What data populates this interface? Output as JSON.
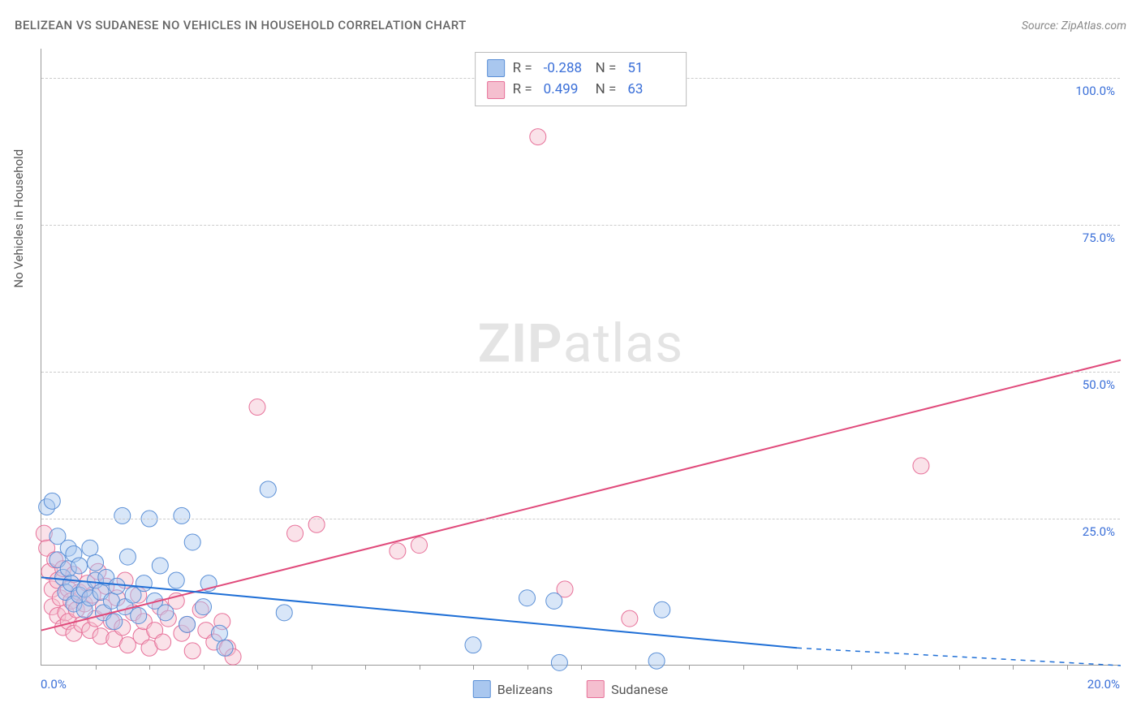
{
  "title": "BELIZEAN VS SUDANESE NO VEHICLES IN HOUSEHOLD CORRELATION CHART",
  "source": "Source: ZipAtlas.com",
  "watermark_bold": "ZIP",
  "watermark_light": "atlas",
  "chart": {
    "type": "scatter",
    "background_color": "#ffffff",
    "grid_color": "#cccccc",
    "axis_color": "#999999",
    "x_min": 0.0,
    "x_max": 20.0,
    "y_min": 0.0,
    "y_max": 105.0,
    "x_label_start": "0.0%",
    "x_label_end": "20.0%",
    "y_title": "No Vehicles in Household",
    "y_ticks": [
      {
        "value": 25.0,
        "label": "25.0%"
      },
      {
        "value": 50.0,
        "label": "50.0%"
      },
      {
        "value": 75.0,
        "label": "75.0%"
      },
      {
        "value": 100.0,
        "label": "100.0%"
      }
    ],
    "x_tick_step": 1.0,
    "y_label_color": "#3a6fd8",
    "marker_radius": 10,
    "marker_opacity": 0.45,
    "line_width": 2,
    "series": [
      {
        "id": "belizeans",
        "name": "Belizeans",
        "fill": "#a9c7ef",
        "stroke": "#5a8fd6",
        "line_color": "#1f6fd6",
        "R": "-0.288",
        "N": "51",
        "trend": {
          "x1": 0.0,
          "y1": 15.0,
          "x2": 14.0,
          "y2": 3.0,
          "dash_from_x": 14.0,
          "dash_to_x": 20.0,
          "dash_to_y": 0.0
        },
        "points": [
          [
            0.1,
            27.0
          ],
          [
            0.2,
            28.0
          ],
          [
            0.3,
            18.0
          ],
          [
            0.3,
            22.0
          ],
          [
            0.4,
            15.0
          ],
          [
            0.45,
            12.5
          ],
          [
            0.5,
            20.0
          ],
          [
            0.5,
            16.5
          ],
          [
            0.55,
            14.0
          ],
          [
            0.6,
            10.5
          ],
          [
            0.6,
            19.0
          ],
          [
            0.7,
            17.0
          ],
          [
            0.7,
            12.0
          ],
          [
            0.8,
            13.0
          ],
          [
            0.8,
            9.5
          ],
          [
            0.9,
            20.0
          ],
          [
            0.9,
            11.5
          ],
          [
            1.0,
            14.5
          ],
          [
            1.0,
            17.5
          ],
          [
            1.1,
            12.5
          ],
          [
            1.15,
            9.0
          ],
          [
            1.2,
            15.0
          ],
          [
            1.3,
            11.0
          ],
          [
            1.35,
            7.5
          ],
          [
            1.4,
            13.5
          ],
          [
            1.5,
            25.5
          ],
          [
            1.55,
            10.0
          ],
          [
            1.6,
            18.5
          ],
          [
            1.7,
            12.0
          ],
          [
            1.8,
            8.5
          ],
          [
            1.9,
            14.0
          ],
          [
            2.0,
            25.0
          ],
          [
            2.1,
            11.0
          ],
          [
            2.2,
            17.0
          ],
          [
            2.3,
            9.0
          ],
          [
            2.5,
            14.5
          ],
          [
            2.6,
            25.5
          ],
          [
            2.7,
            7.0
          ],
          [
            2.8,
            21.0
          ],
          [
            3.0,
            10.0
          ],
          [
            3.1,
            14.0
          ],
          [
            3.3,
            5.5
          ],
          [
            3.4,
            3.0
          ],
          [
            4.2,
            30.0
          ],
          [
            4.5,
            9.0
          ],
          [
            8.0,
            3.5
          ],
          [
            9.0,
            11.5
          ],
          [
            9.5,
            11.0
          ],
          [
            9.6,
            0.5
          ],
          [
            11.4,
            0.8
          ],
          [
            11.5,
            9.5
          ]
        ]
      },
      {
        "id": "sudanese",
        "name": "Sudanese",
        "fill": "#f5bfcf",
        "stroke": "#e77099",
        "line_color": "#e04a7b",
        "R": "0.499",
        "N": "63",
        "trend": {
          "x1": 0.0,
          "y1": 6.0,
          "x2": 20.0,
          "y2": 52.0
        },
        "points": [
          [
            0.05,
            22.5
          ],
          [
            0.1,
            20.0
          ],
          [
            0.15,
            16.0
          ],
          [
            0.2,
            13.0
          ],
          [
            0.2,
            10.0
          ],
          [
            0.25,
            18.0
          ],
          [
            0.3,
            8.5
          ],
          [
            0.3,
            14.5
          ],
          [
            0.35,
            11.5
          ],
          [
            0.4,
            6.5
          ],
          [
            0.4,
            16.5
          ],
          [
            0.45,
            9.0
          ],
          [
            0.5,
            13.0
          ],
          [
            0.5,
            7.5
          ],
          [
            0.55,
            11.0
          ],
          [
            0.6,
            15.5
          ],
          [
            0.6,
            5.5
          ],
          [
            0.65,
            9.5
          ],
          [
            0.7,
            12.5
          ],
          [
            0.75,
            7.0
          ],
          [
            0.8,
            10.5
          ],
          [
            0.85,
            14.0
          ],
          [
            0.9,
            6.0
          ],
          [
            0.95,
            12.0
          ],
          [
            1.0,
            8.0
          ],
          [
            1.05,
            16.0
          ],
          [
            1.1,
            5.0
          ],
          [
            1.15,
            10.0
          ],
          [
            1.2,
            13.5
          ],
          [
            1.3,
            7.5
          ],
          [
            1.35,
            4.5
          ],
          [
            1.4,
            11.5
          ],
          [
            1.5,
            6.5
          ],
          [
            1.55,
            14.5
          ],
          [
            1.6,
            3.5
          ],
          [
            1.7,
            9.0
          ],
          [
            1.8,
            12.0
          ],
          [
            1.85,
            5.0
          ],
          [
            1.9,
            7.5
          ],
          [
            2.0,
            3.0
          ],
          [
            2.1,
            6.0
          ],
          [
            2.2,
            10.0
          ],
          [
            2.25,
            4.0
          ],
          [
            2.35,
            8.0
          ],
          [
            2.5,
            11.0
          ],
          [
            2.6,
            5.5
          ],
          [
            2.7,
            7.0
          ],
          [
            2.8,
            2.5
          ],
          [
            2.95,
            9.5
          ],
          [
            3.05,
            6.0
          ],
          [
            3.2,
            4.0
          ],
          [
            3.35,
            7.5
          ],
          [
            3.45,
            3.0
          ],
          [
            3.55,
            1.5
          ],
          [
            4.0,
            44.0
          ],
          [
            4.7,
            22.5
          ],
          [
            5.1,
            24.0
          ],
          [
            6.6,
            19.5
          ],
          [
            7.0,
            20.5
          ],
          [
            9.2,
            90.0
          ],
          [
            9.7,
            13.0
          ],
          [
            10.9,
            8.0
          ],
          [
            16.3,
            34.0
          ]
        ]
      }
    ]
  },
  "legend_top": {
    "r_label": "R =",
    "n_label": "N ="
  }
}
